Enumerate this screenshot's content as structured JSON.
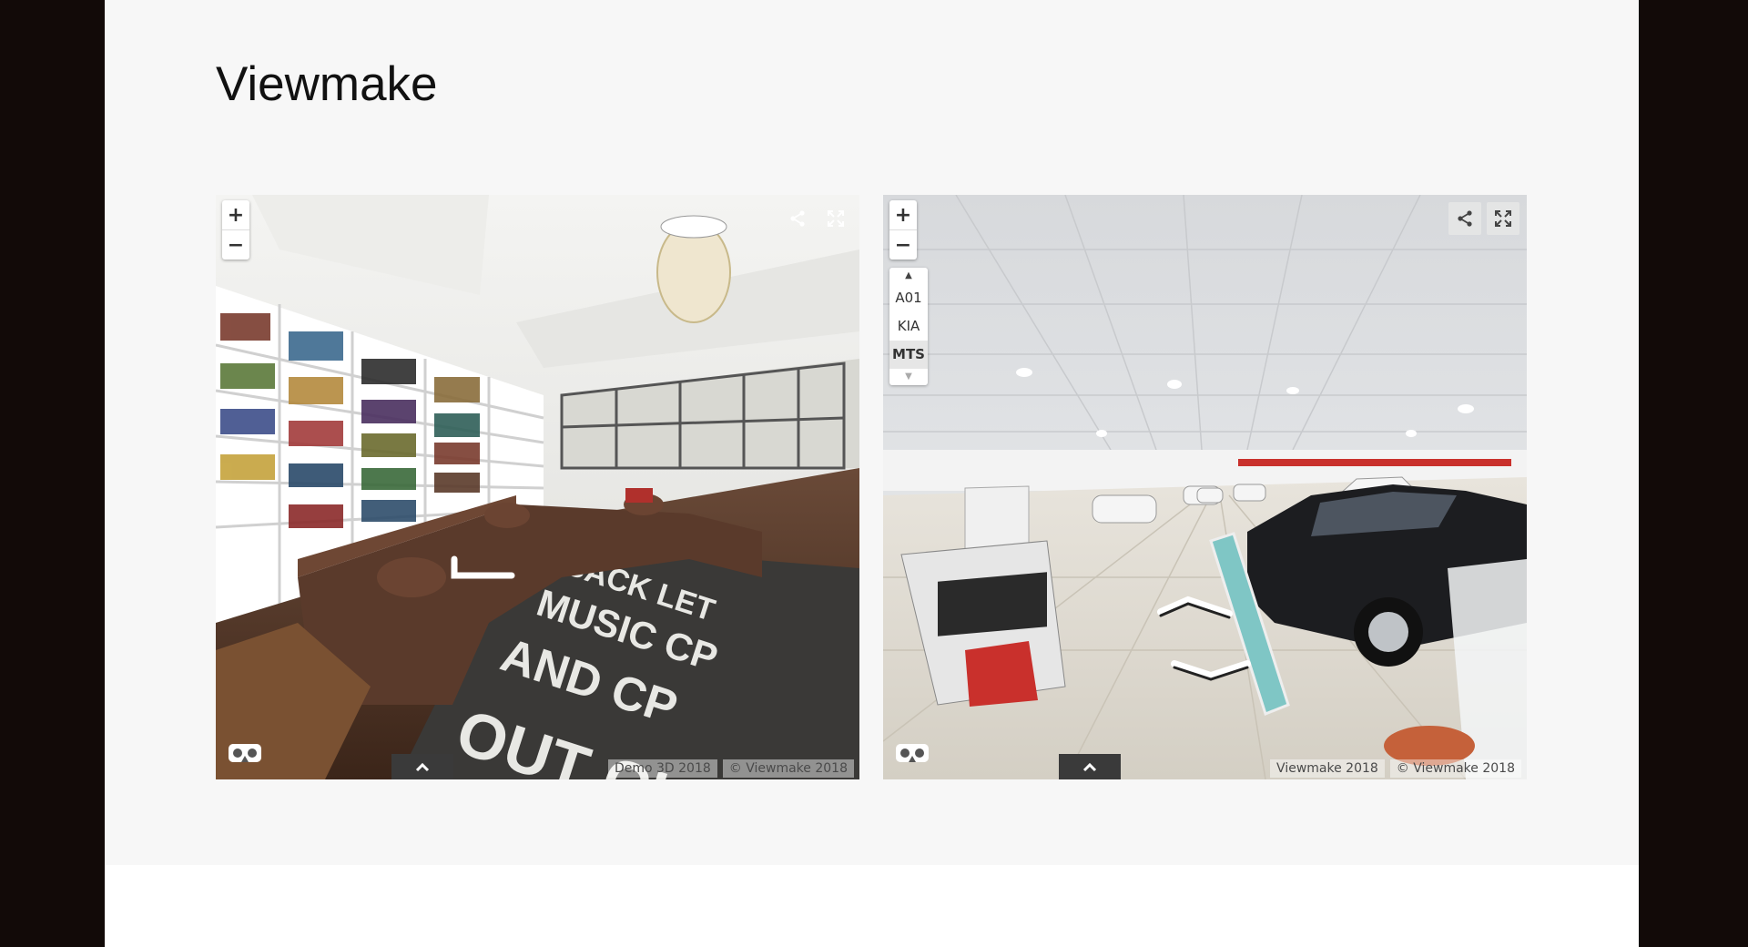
{
  "page": {
    "title": "Viewmake"
  },
  "viewers": [
    {
      "scene": "library living room",
      "zoom_in_label": "+",
      "zoom_out_label": "−",
      "credits": [
        "Demo 3D 2018",
        "© Viewmake 2018"
      ],
      "icons": [
        "share-icon",
        "fullscreen-icon",
        "vr-headset-icon",
        "chevron-up-icon"
      ]
    },
    {
      "scene": "car showroom",
      "zoom_in_label": "+",
      "zoom_out_label": "−",
      "scene_list": {
        "items": [
          "A01",
          "KIA",
          "MTS"
        ],
        "active": "MTS",
        "up_arrow": "▲",
        "down_arrow": "▼"
      },
      "credits": [
        "Viewmake 2018",
        "© Viewmake 2018"
      ],
      "icons": [
        "share-icon",
        "fullscreen-icon",
        "vr-headset-icon",
        "chevron-up-icon"
      ]
    }
  ],
  "colors": {
    "outer_background": "#120a08",
    "page_band": "#f7f7f7",
    "title_text": "#111111",
    "toolbar_tab": "#3a3a3a"
  }
}
